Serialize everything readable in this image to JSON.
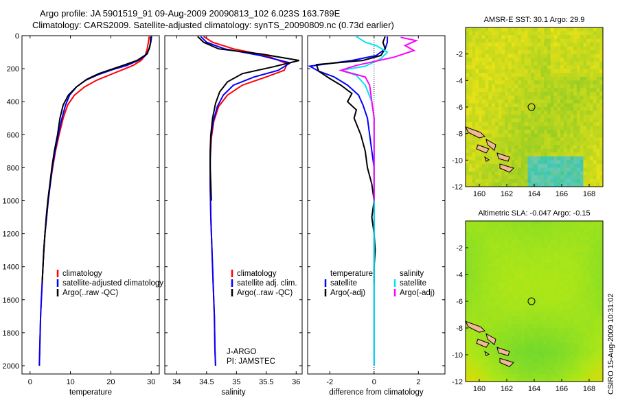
{
  "header": {
    "line1": "Argo profile: JA 5901519_91 09-Aug-2009 20090813_102 6.023S 163.789E",
    "line2": "Climatology: CARS2009. Satellite-adjusted climatology: synTS_20090809.nc (0.73d earlier)"
  },
  "side_label": "CSIRO 15-Aug-2009 10:31:02",
  "colors": {
    "climatology": "#ff0000",
    "satellite": "#0000ff",
    "argo": "#000000",
    "salinity_satellite": "#00e5ee",
    "salinity_argo": "#ff00ff",
    "land": "#f0b896"
  },
  "chart_data": [
    {
      "type": "line",
      "name": "temperature profile",
      "xlabel": "temperature",
      "xlim": [
        -2,
        32
      ],
      "ylim": [
        2050,
        0
      ],
      "xticks": [
        0,
        10,
        20,
        30
      ],
      "yticks": [
        0,
        200,
        400,
        600,
        800,
        1000,
        1200,
        1400,
        1600,
        1800,
        2000
      ],
      "legend": [
        "climatology",
        "satellite-adjusted climatology",
        "Argo(..raw -QC)"
      ],
      "series": [
        {
          "name": "climatology",
          "color": "#ff0000",
          "points": [
            [
              29.5,
              5
            ],
            [
              29.3,
              40
            ],
            [
              29.0,
              80
            ],
            [
              28.5,
              120
            ],
            [
              27.5,
              150
            ],
            [
              25.5,
              180
            ],
            [
              23,
              205
            ],
            [
              20,
              235
            ],
            [
              16.5,
              270
            ],
            [
              13.5,
              310
            ],
            [
              11,
              360
            ],
            [
              9.3,
              420
            ],
            [
              8.2,
              500
            ],
            [
              7.2,
              600
            ],
            [
              6.3,
              700
            ],
            [
              5.6,
              800
            ],
            [
              5.0,
              900
            ],
            [
              4.5,
              1000
            ],
            [
              4.1,
              1100
            ],
            [
              3.7,
              1200
            ],
            [
              3.4,
              1300
            ],
            [
              3.2,
              1400
            ],
            [
              3.0,
              1500
            ],
            [
              2.8,
              1600
            ],
            [
              2.6,
              1700
            ],
            [
              2.5,
              1800
            ],
            [
              2.4,
              1900
            ],
            [
              2.3,
              2000
            ]
          ]
        },
        {
          "name": "satellite-adjusted climatology",
          "color": "#0000ff",
          "points": [
            [
              30.1,
              5
            ],
            [
              29.9,
              40
            ],
            [
              29.5,
              80
            ],
            [
              28.6,
              120
            ],
            [
              26.8,
              150
            ],
            [
              24,
              180
            ],
            [
              20.5,
              205
            ],
            [
              17,
              235
            ],
            [
              13.8,
              270
            ],
            [
              11.5,
              310
            ],
            [
              9.8,
              360
            ],
            [
              8.8,
              420
            ],
            [
              7.9,
              500
            ],
            [
              7.0,
              600
            ],
            [
              6.2,
              700
            ],
            [
              5.5,
              800
            ],
            [
              5.0,
              900
            ],
            [
              4.5,
              1000
            ],
            [
              4.1,
              1100
            ],
            [
              3.7,
              1200
            ],
            [
              3.4,
              1300
            ],
            [
              3.2,
              1400
            ],
            [
              3.0,
              1500
            ],
            [
              2.8,
              1600
            ],
            [
              2.6,
              1700
            ],
            [
              2.5,
              1800
            ],
            [
              2.4,
              1900
            ],
            [
              2.3,
              2000
            ]
          ]
        },
        {
          "name": "Argo(..raw -QC)",
          "color": "#000000",
          "points": [
            [
              29.9,
              5
            ],
            [
              29.8,
              40
            ],
            [
              29.6,
              70
            ],
            [
              29,
              110
            ],
            [
              26.5,
              150
            ],
            [
              23,
              180
            ],
            [
              20,
              205
            ],
            [
              17,
              230
            ],
            [
              14,
              265
            ],
            [
              11.5,
              310
            ],
            [
              9.5,
              360
            ],
            [
              8.2,
              420
            ],
            [
              7.4,
              500
            ],
            [
              6.8,
              600
            ],
            [
              6.0,
              700
            ],
            [
              5.4,
              800
            ],
            [
              4.9,
              900
            ],
            [
              4.4,
              1000
            ],
            [
              4.0,
              1100
            ],
            [
              3.7,
              1200
            ],
            [
              3.4,
              1300
            ],
            [
              3.2,
              1400
            ],
            [
              3.0,
              1500
            ]
          ]
        }
      ]
    },
    {
      "type": "line",
      "name": "salinity profile",
      "xlabel": "salinity",
      "xlim": [
        33.8,
        36.1
      ],
      "ylim": [
        2050,
        0
      ],
      "xticks": [
        34,
        34.5,
        35,
        35.5,
        36
      ],
      "legend": [
        "climatology",
        "satellite adj. clim.",
        "Argo(..raw -QC)"
      ],
      "annotation": [
        "J-ARGO",
        "PI: JAMSTEC"
      ],
      "series": [
        {
          "name": "climatology",
          "color": "#ff0000",
          "points": [
            [
              34.45,
              5
            ],
            [
              34.6,
              40
            ],
            [
              34.95,
              80
            ],
            [
              35.5,
              120
            ],
            [
              35.85,
              170
            ],
            [
              35.8,
              210
            ],
            [
              35.5,
              250
            ],
            [
              35.1,
              300
            ],
            [
              34.85,
              360
            ],
            [
              34.7,
              430
            ],
            [
              34.62,
              520
            ],
            [
              34.58,
              620
            ],
            [
              34.56,
              750
            ],
            [
              34.56,
              900
            ],
            [
              34.57,
              1100
            ],
            [
              34.59,
              1300
            ],
            [
              34.61,
              1500
            ],
            [
              34.63,
              1700
            ],
            [
              34.64,
              1900
            ],
            [
              34.65,
              2000
            ]
          ]
        },
        {
          "name": "satellite adj. clim.",
          "color": "#0000ff",
          "points": [
            [
              34.4,
              5
            ],
            [
              34.5,
              40
            ],
            [
              34.8,
              80
            ],
            [
              35.4,
              120
            ],
            [
              35.9,
              165
            ],
            [
              35.7,
              210
            ],
            [
              35.3,
              250
            ],
            [
              34.95,
              300
            ],
            [
              34.78,
              360
            ],
            [
              34.68,
              430
            ],
            [
              34.61,
              520
            ],
            [
              34.57,
              620
            ],
            [
              34.56,
              750
            ],
            [
              34.56,
              900
            ],
            [
              34.57,
              1100
            ],
            [
              34.59,
              1300
            ],
            [
              34.61,
              1500
            ],
            [
              34.63,
              1700
            ],
            [
              34.64,
              1900
            ],
            [
              34.65,
              2000
            ]
          ]
        },
        {
          "name": "Argo(..raw -QC)",
          "color": "#000000",
          "points": [
            [
              34.35,
              5
            ],
            [
              34.45,
              40
            ],
            [
              34.7,
              80
            ],
            [
              35.4,
              110
            ],
            [
              36.05,
              150
            ],
            [
              35.6,
              190
            ],
            [
              35.1,
              230
            ],
            [
              34.85,
              280
            ],
            [
              34.72,
              340
            ],
            [
              34.65,
              410
            ],
            [
              34.6,
              500
            ],
            [
              34.57,
              600
            ],
            [
              34.56,
              700
            ],
            [
              34.56,
              800
            ],
            [
              34.57,
              900
            ],
            [
              34.58,
              1000
            ]
          ]
        }
      ]
    },
    {
      "type": "line",
      "name": "difference profile",
      "xlabel": "difference from climatology",
      "xlim": [
        -3,
        3.2
      ],
      "ylim": [
        2050,
        0
      ],
      "xticks": [
        -2,
        0,
        2
      ],
      "legend": [
        "temperature",
        "satellite",
        "Argo(-adj)",
        "salinity",
        "satellite",
        "Argo(-adj)"
      ],
      "series": [
        {
          "name": "temperature satellite",
          "color": "#0000ff",
          "points": [
            [
              0.6,
              5
            ],
            [
              0.6,
              40
            ],
            [
              0.5,
              80
            ],
            [
              0.1,
              120
            ],
            [
              -1.0,
              150
            ],
            [
              -2.9,
              185
            ],
            [
              -2.5,
              215
            ],
            [
              -1.8,
              250
            ],
            [
              -1.2,
              300
            ],
            [
              -0.7,
              360
            ],
            [
              -0.5,
              420
            ],
            [
              -0.3,
              500
            ],
            [
              -0.2,
              600
            ],
            [
              -0.1,
              700
            ],
            [
              0,
              800
            ],
            [
              0,
              1000
            ],
            [
              0,
              1500
            ],
            [
              0,
              2000
            ]
          ]
        },
        {
          "name": "temperature Argo(-adj)",
          "color": "#000000",
          "points": [
            [
              0.5,
              5
            ],
            [
              0.4,
              40
            ],
            [
              0.5,
              80
            ],
            [
              0.3,
              120
            ],
            [
              -0.5,
              150
            ],
            [
              -2.6,
              175
            ],
            [
              -2.5,
              215
            ],
            [
              -2.0,
              260
            ],
            [
              -1.5,
              300
            ],
            [
              -1.0,
              350
            ],
            [
              -1.2,
              400
            ],
            [
              -0.8,
              450
            ],
            [
              -0.9,
              500
            ],
            [
              -0.6,
              600
            ],
            [
              -0.4,
              700
            ],
            [
              -0.3,
              800
            ],
            [
              -0.1,
              900
            ],
            [
              0,
              1000
            ],
            [
              -0.1,
              1100
            ],
            [
              0,
              1200
            ],
            [
              0.05,
              1300
            ],
            [
              0,
              1400
            ],
            [
              0,
              1500
            ]
          ]
        },
        {
          "name": "salinity satellite",
          "color": "#00e5ee",
          "points": [
            [
              -0.8,
              5
            ],
            [
              -0.4,
              40
            ],
            [
              0.1,
              60
            ],
            [
              0.6,
              100
            ],
            [
              0.3,
              140
            ],
            [
              -0.4,
              185
            ],
            [
              -1.5,
              210
            ],
            [
              -0.8,
              240
            ],
            [
              -0.4,
              300
            ],
            [
              -0.1,
              400
            ],
            [
              0,
              500
            ],
            [
              0,
              700
            ],
            [
              0,
              1000
            ],
            [
              0,
              1500
            ],
            [
              0,
              2000
            ]
          ]
        },
        {
          "name": "salinity Argo(-adj)",
          "color": "#ff00ff",
          "points": [
            [
              1.2,
              10
            ],
            [
              1.9,
              30
            ],
            [
              1.4,
              60
            ],
            [
              1.8,
              90
            ],
            [
              0.9,
              130
            ],
            [
              -0.8,
              180
            ],
            [
              -1.5,
              210
            ],
            [
              -0.4,
              250
            ],
            [
              -0.2,
              300
            ],
            [
              -0.1,
              400
            ],
            [
              0,
              500
            ],
            [
              0,
              700
            ],
            [
              0,
              1000
            ]
          ]
        }
      ]
    },
    {
      "type": "heatmap",
      "name": "AMSR-E SST map",
      "title": "AMSR-E SST: 30.1  Argo: 29.9",
      "xlim": [
        159,
        169
      ],
      "ylim": [
        -12,
        0
      ],
      "xticks": [
        160,
        162,
        164,
        166,
        168
      ],
      "yticks": [
        -2,
        -4,
        -6,
        -8,
        -10,
        -12
      ],
      "marker": [
        163.8,
        -6.0
      ]
    },
    {
      "type": "heatmap",
      "name": "Altimetric SLA map",
      "title": "Altimetric SLA: -0.047  Argo: -0.15",
      "xlim": [
        159,
        169
      ],
      "ylim": [
        -12,
        0
      ],
      "xticks": [
        160,
        162,
        164,
        166,
        168
      ],
      "yticks": [
        -2,
        -4,
        -6,
        -8,
        -10,
        -12
      ],
      "marker": [
        163.8,
        -6.0
      ]
    }
  ]
}
